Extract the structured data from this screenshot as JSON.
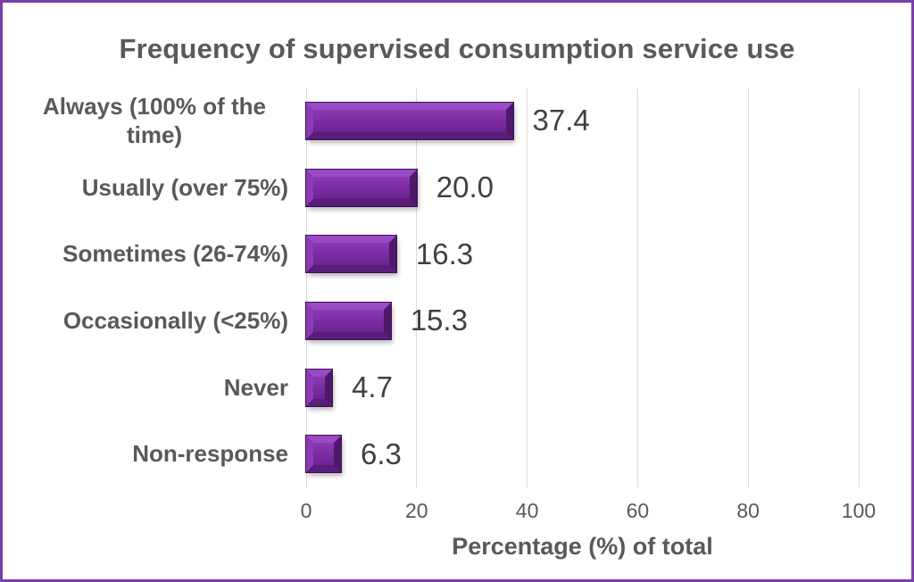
{
  "frame": {
    "background": "#ffffff",
    "border_color": "#7a3ea8"
  },
  "chart_data": {
    "type": "bar",
    "orientation": "horizontal",
    "title": "Frequency of supervised consumption service use",
    "categories": [
      "Always (100% of the time)",
      "Usually (over 75%)",
      "Sometimes (26-74%)",
      "Occasionally (<25%)",
      "Never",
      "Non-response"
    ],
    "values": [
      37.4,
      20.0,
      16.3,
      15.3,
      4.7,
      6.3
    ],
    "value_labels": [
      "37.4",
      "20.0",
      "16.3",
      "15.3",
      "4.7",
      "6.3"
    ],
    "xlabel": "Percentage (%) of total",
    "xlim": [
      0,
      100
    ],
    "xticks": [
      0,
      20,
      40,
      60,
      80,
      100
    ],
    "xtick_labels": [
      "0",
      "20",
      "40",
      "60",
      "80",
      "100"
    ],
    "grid": "vertical-gridlines",
    "legend": "none",
    "bar_style": "3d-bevel",
    "colors": {
      "bar_face": "#7c2ea4",
      "bar_face_light": "#8c39b4",
      "bar_face_dark": "#6b2392",
      "bar_bevel_top": "#9a4ac5",
      "bar_bevel_left": "#8a3bb4",
      "bar_bevel_right": "#4e186b",
      "bar_bevel_bottom": "#5a1d79",
      "bar_outline": "#3a0f50",
      "gridline": "#d9d9d9",
      "text": "#595959",
      "value_text": "#404040"
    }
  }
}
